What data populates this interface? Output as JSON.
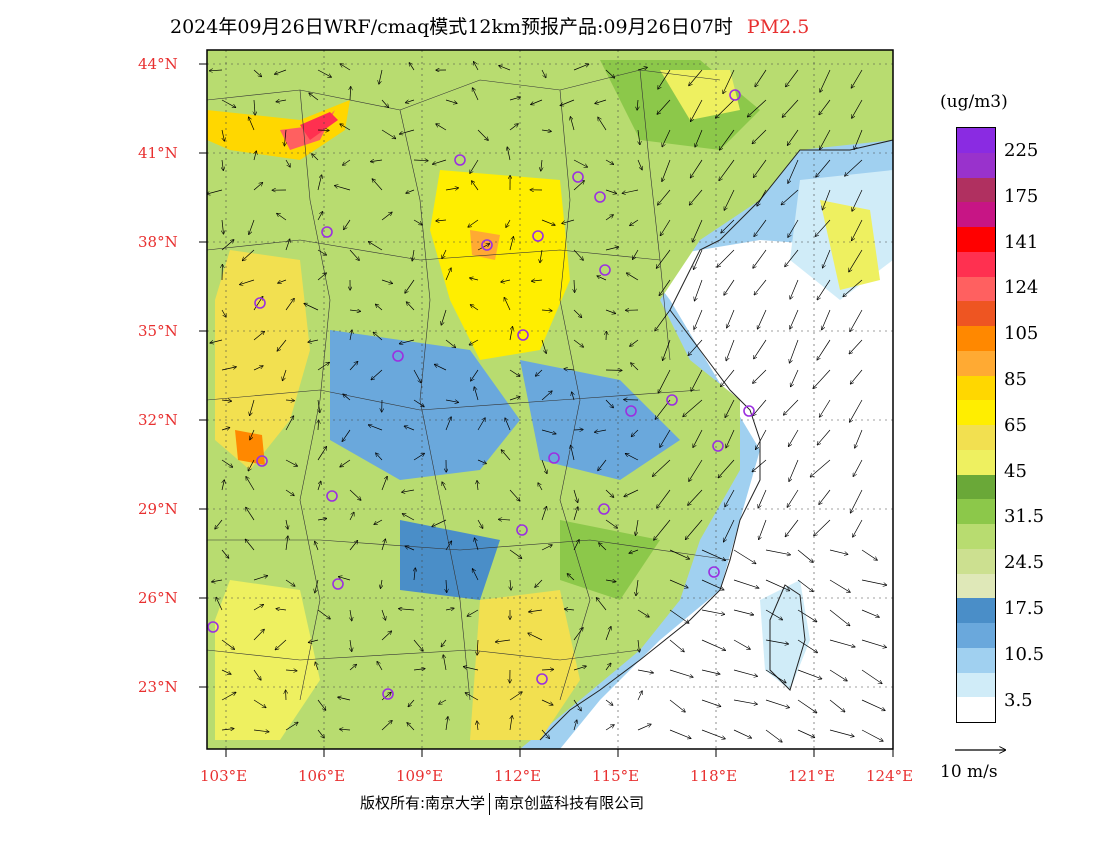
{
  "title": {
    "text": "2024年09月26日WRF/cmaq模式12km预报产品:09月26日07时",
    "pollutant": "PM2.5"
  },
  "axes": {
    "lat_labels": [
      "44°N",
      "41°N",
      "38°N",
      "35°N",
      "32°N",
      "29°N",
      "26°N",
      "23°N"
    ],
    "lon_labels": [
      "103°E",
      "106°E",
      "109°E",
      "112°E",
      "115°E",
      "118°E",
      "121°E",
      "124°E"
    ]
  },
  "legend": {
    "unit": "(ug/m3)",
    "labels": [
      "225",
      "175",
      "141",
      "124",
      "105",
      "85",
      "65",
      "45",
      "31.5",
      "24.5",
      "17.5",
      "10.5",
      "3.5"
    ],
    "colors": [
      "#8a2be2",
      "#9932cc",
      "#b03060",
      "#c71585",
      "#ff0000",
      "#ff3050",
      "#ff6060",
      "#ee5522",
      "#ff8800",
      "#ffaa33",
      "#ffd700",
      "#ffee00",
      "#f2e050",
      "#eef060",
      "#6aa838",
      "#8cc84a",
      "#b8dc70",
      "#cce090",
      "#dfe8b8",
      "#4a8ec8",
      "#6aa8dc",
      "#a0d0f0",
      "#d0ecf8",
      "#ffffff"
    ]
  },
  "wind_reference": "10 m/s",
  "footer": {
    "left": "版权所有:南京大学",
    "right": "南京创蓝科技有限公司"
  },
  "map": {
    "type": "PM2.5 concentration map with wind vectors",
    "region": "Eastern China",
    "station_color": "#9b30e0",
    "accent_color": "#e83030"
  }
}
